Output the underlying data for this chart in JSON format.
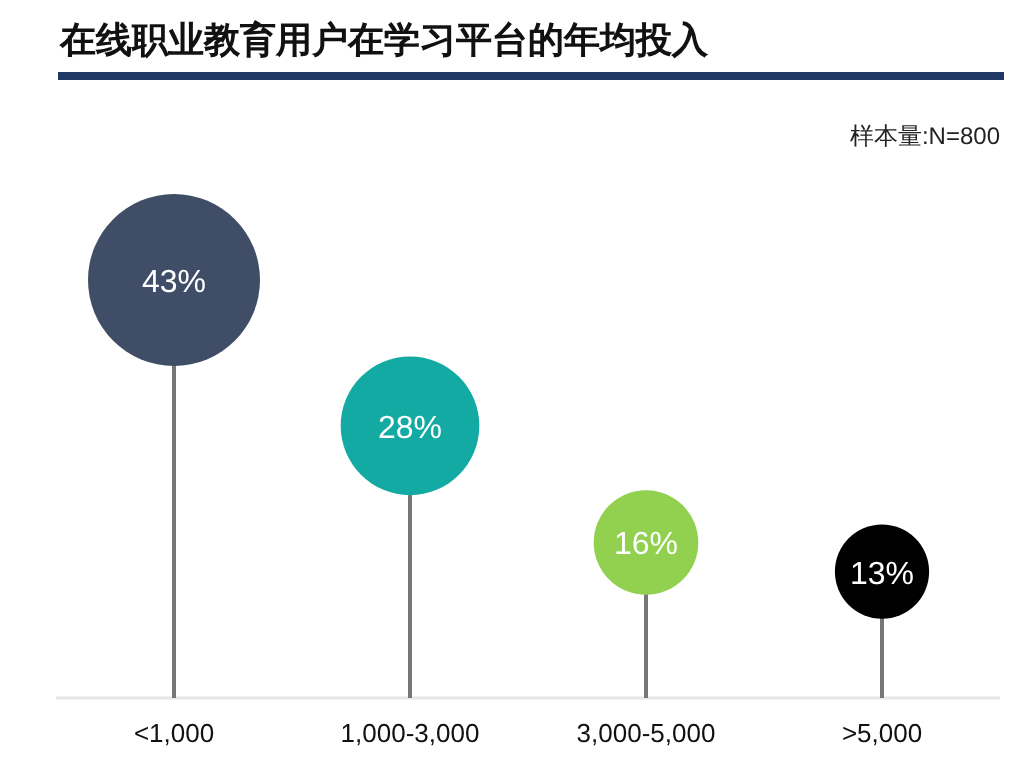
{
  "chart_data": {
    "type": "lollipop",
    "title": "在线职业教育用户在学习平台的年均投入",
    "annotations": [
      "样本量:N=800"
    ],
    "categories": [
      "<1,000",
      "1,000-3,000",
      "3,000-5,000",
      ">5,000"
    ],
    "values": [
      43,
      28,
      16,
      13
    ],
    "value_labels": [
      "43%",
      "28%",
      "16%",
      "13%"
    ],
    "sizes": [
      1,
      0.65,
      0.37,
      0.3
    ],
    "colors": [
      "#3f4d66",
      "#13aaa4",
      "#92d050",
      "#000000"
    ]
  }
}
